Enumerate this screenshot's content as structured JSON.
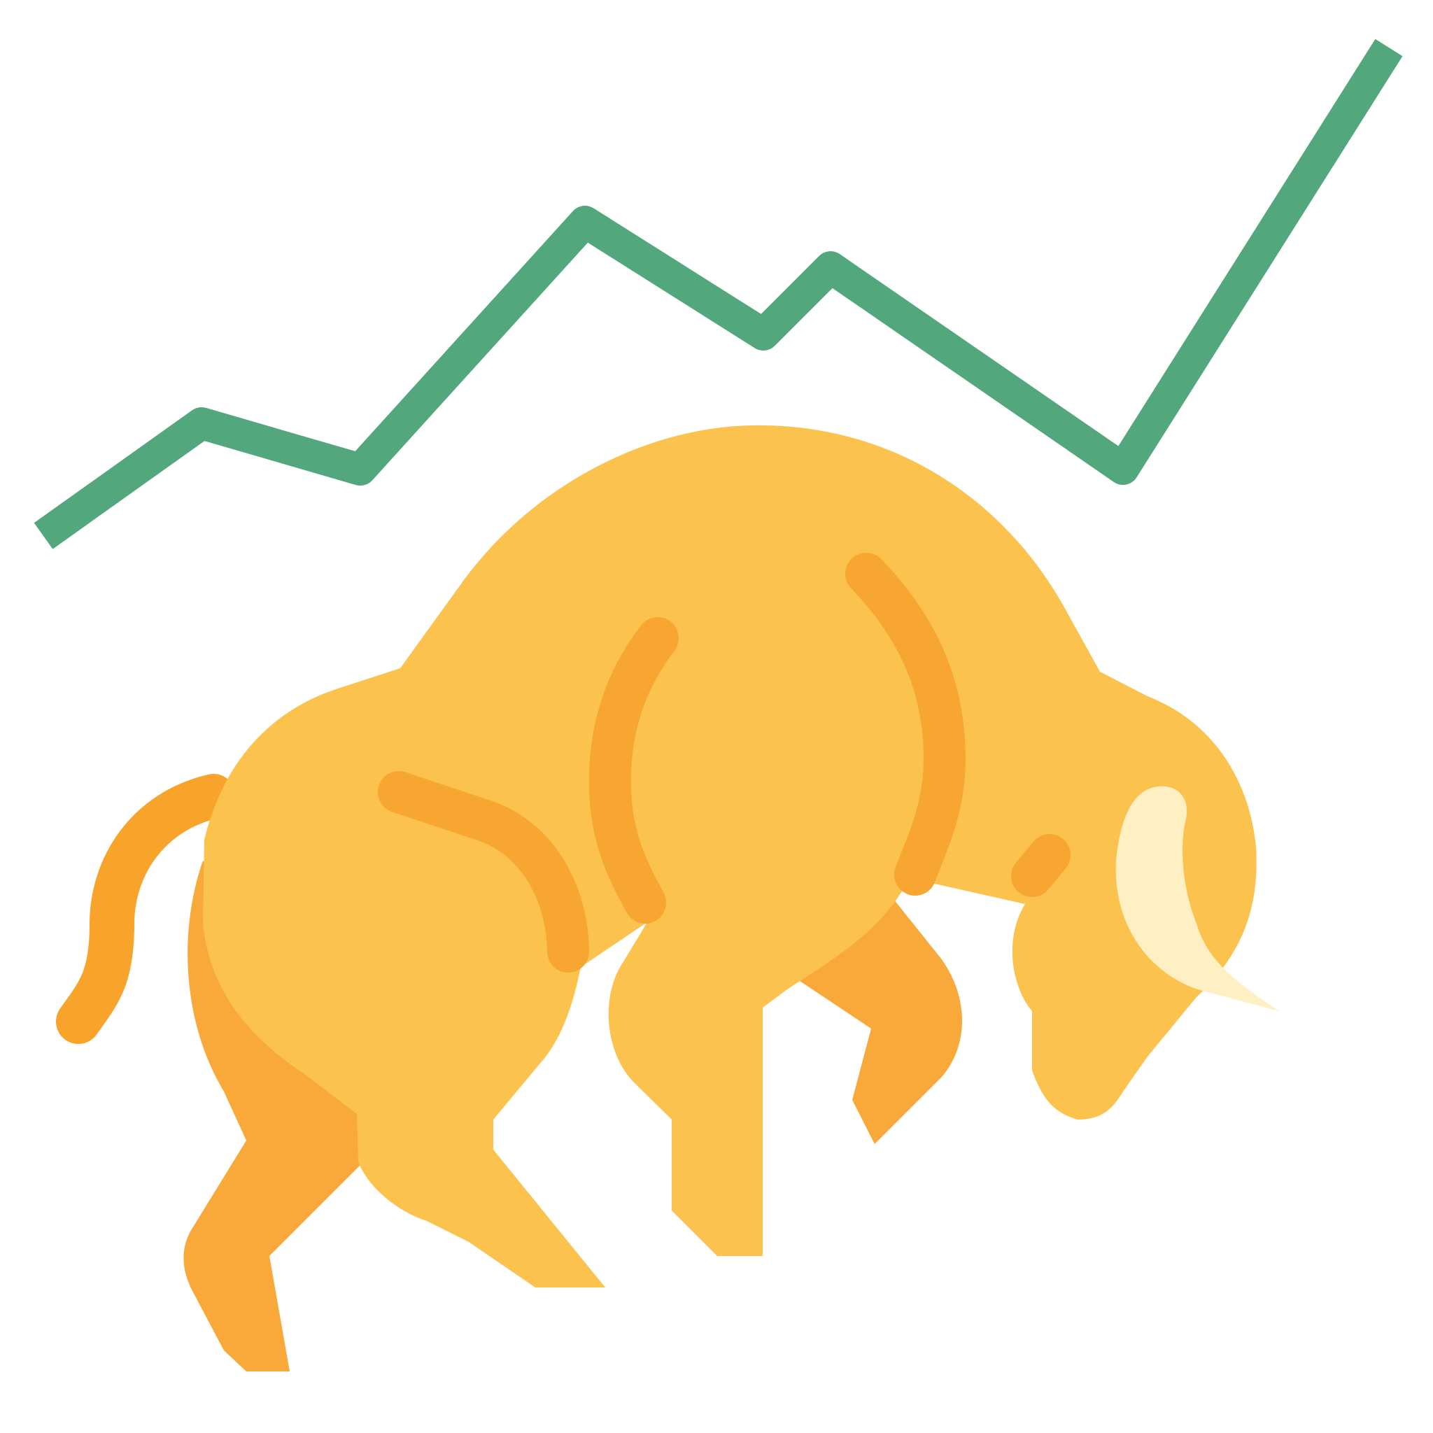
{
  "illustration": {
    "subject": "bull-market-icon",
    "colors": {
      "trend_line": "#52a77d",
      "body": "#fbc24e",
      "shadow_legs": "#f9a83a",
      "tail": "#f8a329",
      "muscle_lines": "#f8a632",
      "horn": "#fff0c4",
      "background": "#ffffff"
    }
  }
}
